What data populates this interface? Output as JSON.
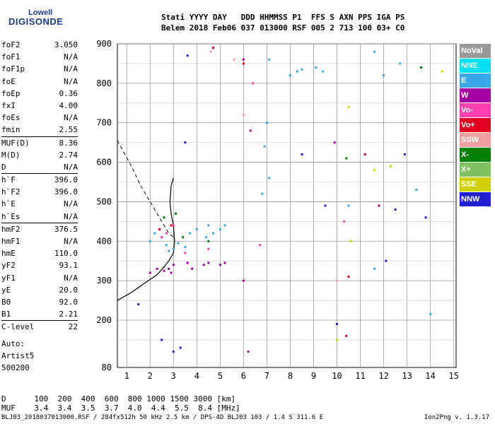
{
  "logo": {
    "brand": "Lowell",
    "name": "DIGISONDE"
  },
  "header": {
    "labels": "Stati YYYY DAY   DDD HHMMSS P1  FFS S AXN PPS IGA PS",
    "values": "Belem 2018 Feb06 037 013000 RSF 005 2 713 100 03+ C0"
  },
  "params": [
    {
      "name": "foF2",
      "value": "3.050"
    },
    {
      "name": "foF1",
      "value": "N/A"
    },
    {
      "name": "foF1p",
      "value": "N/A"
    },
    {
      "name": "foE",
      "value": "N/A"
    },
    {
      "name": "foEp",
      "value": "0.36"
    },
    {
      "name": "fxI",
      "value": "4.00"
    },
    {
      "name": "foEs",
      "value": "N/A"
    },
    {
      "name": "fmin",
      "value": "2.55"
    },
    {
      "name": "MUF(D)",
      "value": "8.36",
      "sep": true
    },
    {
      "name": "M(D)",
      "value": "2.74"
    },
    {
      "name": "D",
      "value": "N/A"
    },
    {
      "name": "h`F",
      "value": "396.0",
      "sep": true
    },
    {
      "name": "h`F2",
      "value": "396.0"
    },
    {
      "name": "h`E",
      "value": "N/A"
    },
    {
      "name": "h`Es",
      "value": "N/A"
    },
    {
      "name": "hmF2",
      "value": "376.5",
      "sep": true
    },
    {
      "name": "hmF1",
      "value": "N/A"
    },
    {
      "name": "hmE",
      "value": "110.0"
    },
    {
      "name": "yF2",
      "value": "93.1"
    },
    {
      "name": "yF1",
      "value": "N/A"
    },
    {
      "name": "yE",
      "value": "20.0"
    },
    {
      "name": "B0",
      "value": "92.0"
    },
    {
      "name": "B1",
      "value": "2.21"
    },
    {
      "name": "C-level",
      "value": "22",
      "sep": true
    }
  ],
  "info": {
    "line1": "Auto:",
    "line2": "Artist5",
    "line3": "500200"
  },
  "legend": [
    {
      "label": "NoVal",
      "color": "#999999"
    },
    {
      "label": "NNE",
      "color": "#00e0f0"
    },
    {
      "label": "E",
      "color": "#3aa8e8"
    },
    {
      "label": "W",
      "color": "#a000a0"
    },
    {
      "label": "Vo-",
      "color": "#ff40b0"
    },
    {
      "label": "Vo+",
      "color": "#e00020"
    },
    {
      "label": "SSW",
      "color": "#f0a0a0"
    },
    {
      "label": "X-",
      "color": "#008000"
    },
    {
      "label": "X+",
      "color": "#80c060"
    },
    {
      "label": "SSE",
      "color": "#d0d000"
    },
    {
      "label": "NNW",
      "color": "#2020d0"
    }
  ],
  "footer": {
    "d_line": "D      100  200  400  600  800 1000 1500 3000 [km]",
    "muf_line": "MUF    3.4  3.4  3.5  3.7  4.0  4.4  5.5  8.4 [MHz]",
    "file_line": "BLJ03_2018037013000.RSF / 284fx512h 50 kHz 2.5 km / DPS-4D BLJ03 103 / 1.4 S 311.6 E",
    "version": "Ion2Png v. 1.3.17"
  },
  "chart_data": {
    "type": "scatter",
    "title": "",
    "xlabel": "",
    "ylabel": "",
    "xlim": [
      0.6,
      15.1
    ],
    "ylim": [
      80,
      900
    ],
    "xticks": [
      1,
      2,
      3,
      4,
      5,
      6,
      7,
      8,
      9,
      10,
      11,
      12,
      13,
      14,
      15
    ],
    "yticks": [
      80,
      200,
      300,
      400,
      500,
      600,
      700,
      800,
      900
    ],
    "grid": true,
    "series": [
      {
        "name": "E",
        "color": "#3aa8e8",
        "points": [
          [
            2.0,
            400
          ],
          [
            2.2,
            420
          ],
          [
            2.5,
            410
          ],
          [
            2.7,
            390
          ],
          [
            2.8,
            375
          ],
          [
            3.0,
            380
          ],
          [
            3.2,
            395
          ],
          [
            3.5,
            385
          ],
          [
            3.7,
            420
          ],
          [
            4.0,
            430
          ],
          [
            4.4,
            410
          ],
          [
            4.5,
            440
          ],
          [
            4.7,
            420
          ],
          [
            5.0,
            430
          ],
          [
            5.2,
            440
          ],
          [
            6.8,
            520
          ],
          [
            6.9,
            640
          ],
          [
            7.0,
            700
          ],
          [
            7.1,
            560
          ],
          [
            7.1,
            860
          ],
          [
            8.0,
            820
          ],
          [
            8.3,
            830
          ],
          [
            8.5,
            835
          ],
          [
            9.1,
            840
          ],
          [
            9.4,
            830
          ],
          [
            10.5,
            490
          ],
          [
            11.6,
            880
          ],
          [
            11.6,
            330
          ],
          [
            12.0,
            820
          ],
          [
            12.7,
            850
          ],
          [
            13.4,
            530
          ],
          [
            14.0,
            215
          ]
        ]
      },
      {
        "name": "W",
        "color": "#a000a0",
        "points": [
          [
            2.0,
            320
          ],
          [
            2.3,
            330
          ],
          [
            2.6,
            325
          ],
          [
            2.8,
            330
          ],
          [
            2.9,
            320
          ],
          [
            3.0,
            340
          ],
          [
            3.6,
            345
          ],
          [
            3.8,
            330
          ],
          [
            4.3,
            340
          ],
          [
            4.5,
            345
          ],
          [
            5.0,
            340
          ],
          [
            5.2,
            345
          ],
          [
            6.0,
            300
          ],
          [
            6.2,
            120
          ],
          [
            6.3,
            680
          ],
          [
            6.0,
            860
          ],
          [
            9.9,
            650
          ],
          [
            11.8,
            490
          ]
        ]
      },
      {
        "name": "NNW",
        "color": "#2020d0",
        "points": [
          [
            1.5,
            240
          ],
          [
            2.5,
            150
          ],
          [
            3.0,
            120
          ],
          [
            3.3,
            130
          ],
          [
            3.5,
            650
          ],
          [
            3.6,
            870
          ],
          [
            8.5,
            620
          ],
          [
            9.5,
            490
          ],
          [
            10.0,
            190
          ],
          [
            12.5,
            480
          ],
          [
            12.9,
            620
          ],
          [
            13.8,
            460
          ],
          [
            12.1,
            350
          ]
        ]
      },
      {
        "name": "Vo-",
        "color": "#ff40b0",
        "points": [
          [
            2.5,
            410
          ],
          [
            2.7,
            420
          ],
          [
            3.0,
            440
          ],
          [
            3.5,
            370
          ],
          [
            4.5,
            380
          ],
          [
            6.4,
            800
          ],
          [
            6.7,
            390
          ],
          [
            10.3,
            450
          ]
        ]
      },
      {
        "name": "Vo+",
        "color": "#e00020",
        "points": [
          [
            2.4,
            430
          ],
          [
            2.9,
            440
          ],
          [
            4.7,
            890
          ],
          [
            6.0,
            850
          ],
          [
            10.4,
            160
          ],
          [
            10.5,
            310
          ],
          [
            11.2,
            620
          ]
        ]
      },
      {
        "name": "X-",
        "color": "#008000",
        "points": [
          [
            2.6,
            460
          ],
          [
            3.1,
            470
          ],
          [
            3.4,
            410
          ],
          [
            4.5,
            400
          ],
          [
            10.4,
            610
          ],
          [
            13.6,
            840
          ]
        ]
      },
      {
        "name": "SSE",
        "color": "#d0d000",
        "points": [
          [
            10.5,
            740
          ],
          [
            11.6,
            580
          ],
          [
            12.3,
            590
          ],
          [
            14.5,
            830
          ],
          [
            10.0,
            150
          ],
          [
            10.6,
            400
          ]
        ]
      },
      {
        "name": "SSW",
        "color": "#f0a0a0",
        "points": [
          [
            4.6,
            880
          ],
          [
            5.6,
            860
          ],
          [
            6.0,
            720
          ],
          [
            10.0,
            300
          ]
        ]
      }
    ]
  }
}
